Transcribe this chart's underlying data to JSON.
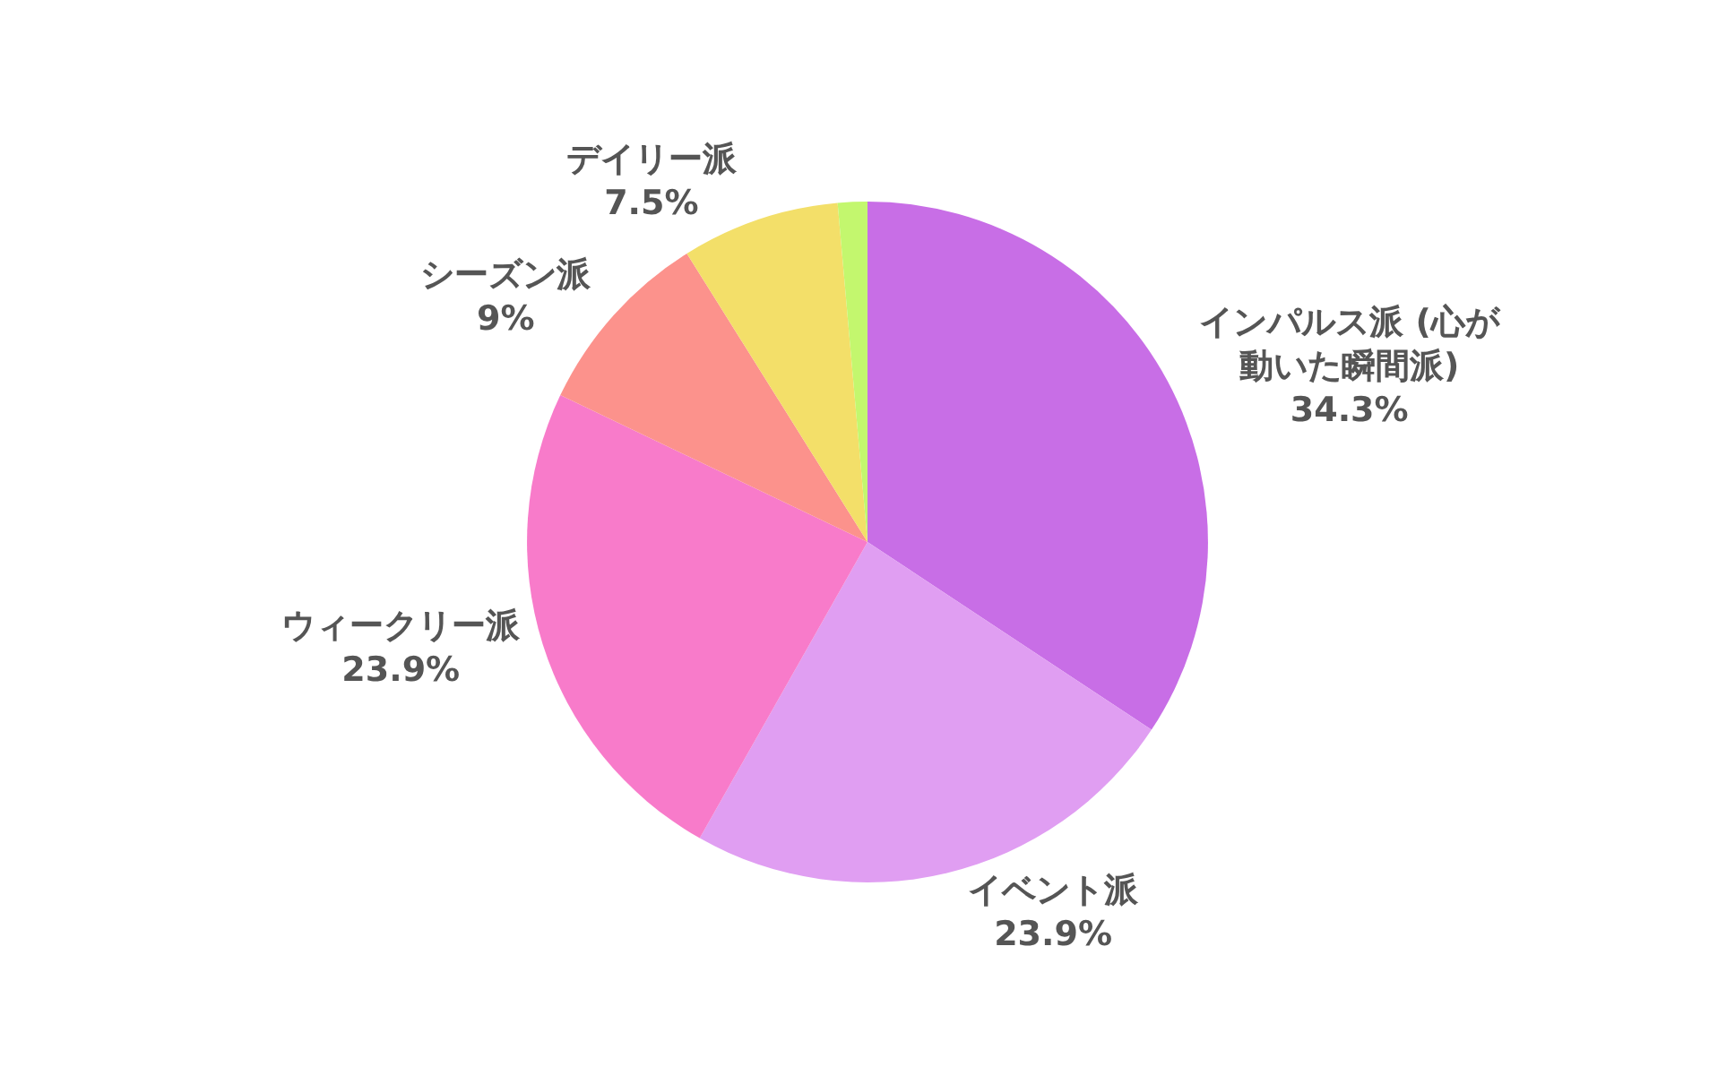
{
  "chart_data": {
    "type": "pie",
    "categories": [
      "インパルス派 (心が動いた瞬間派)",
      "イベント派",
      "ウィークリー派",
      "シーズン派",
      "デイリー派",
      null
    ],
    "values": [
      34.3,
      23.9,
      23.9,
      9,
      7.5,
      1.4
    ],
    "value_labels": [
      "34.3%",
      "23.9%",
      "23.9%",
      "9%",
      "7.5%",
      null
    ],
    "colors": [
      "#c86ee6",
      "#e09ef2",
      "#f87bca",
      "#fc928c",
      "#f3df69",
      "#c3f76e"
    ],
    "legend": false
  }
}
